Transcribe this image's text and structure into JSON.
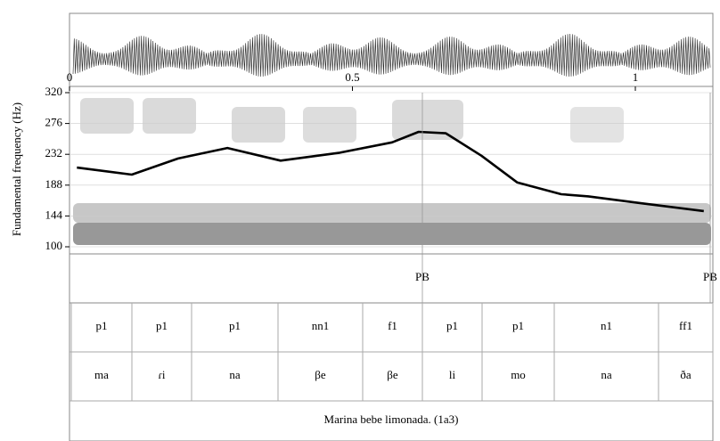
{
  "chart_data": {
    "type": "line",
    "y_label": "Fundamental frequency (Hz)",
    "xlim": [
      0,
      1.137
    ],
    "xticks": [
      0,
      0.5,
      1
    ],
    "ylim": [
      100,
      320
    ],
    "yticks": [
      100,
      144,
      188,
      232,
      276,
      320
    ],
    "x": [
      0.013,
      0.11,
      0.192,
      0.279,
      0.373,
      0.476,
      0.57,
      0.617,
      0.665,
      0.728,
      0.791,
      0.869,
      0.917,
      1.011,
      1.121
    ],
    "values": [
      213,
      203,
      226,
      241,
      223,
      234,
      249,
      264,
      262,
      230,
      192,
      175,
      172,
      162,
      151
    ],
    "color": "#000000",
    "grid": true
  },
  "tiers": [
    {
      "labels": [
        "PB",
        "PB"
      ]
    },
    {
      "labels": [
        "p1",
        "p1",
        "p1",
        "nn1",
        "f1",
        "p1",
        "p1",
        "n1",
        "ff1"
      ]
    },
    {
      "labels": [
        "ma",
        "ɾi",
        "na",
        "βe",
        "βe",
        "li",
        "mo",
        "na",
        "ða"
      ]
    },
    {
      "labels": [
        "Marina bebe limonada. (1a3)"
      ]
    }
  ]
}
